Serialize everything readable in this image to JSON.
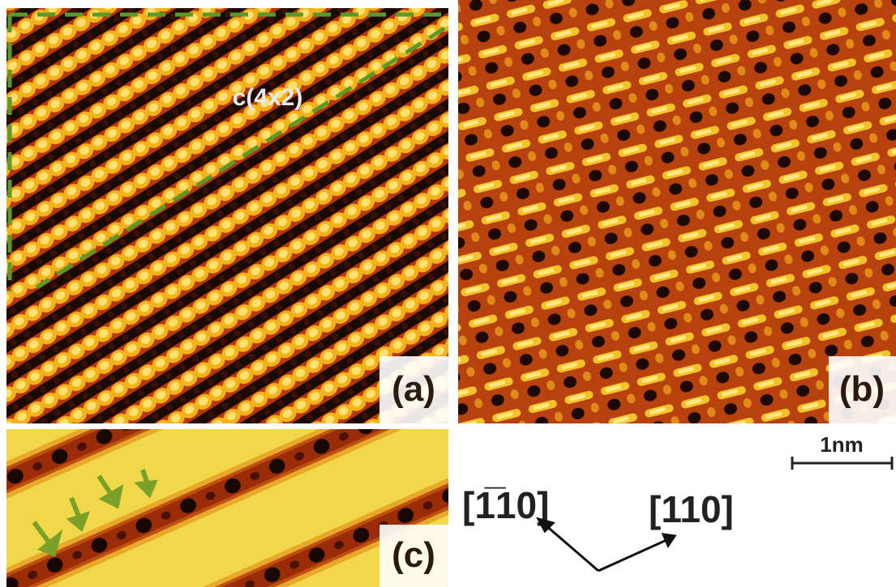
{
  "figure": {
    "annotation": "c(4x2)",
    "panels": [
      "(a)",
      "(b)",
      "(c)"
    ],
    "scale_bar": "1nm",
    "directions": [
      "[1̅10]",
      "[110]"
    ]
  }
}
